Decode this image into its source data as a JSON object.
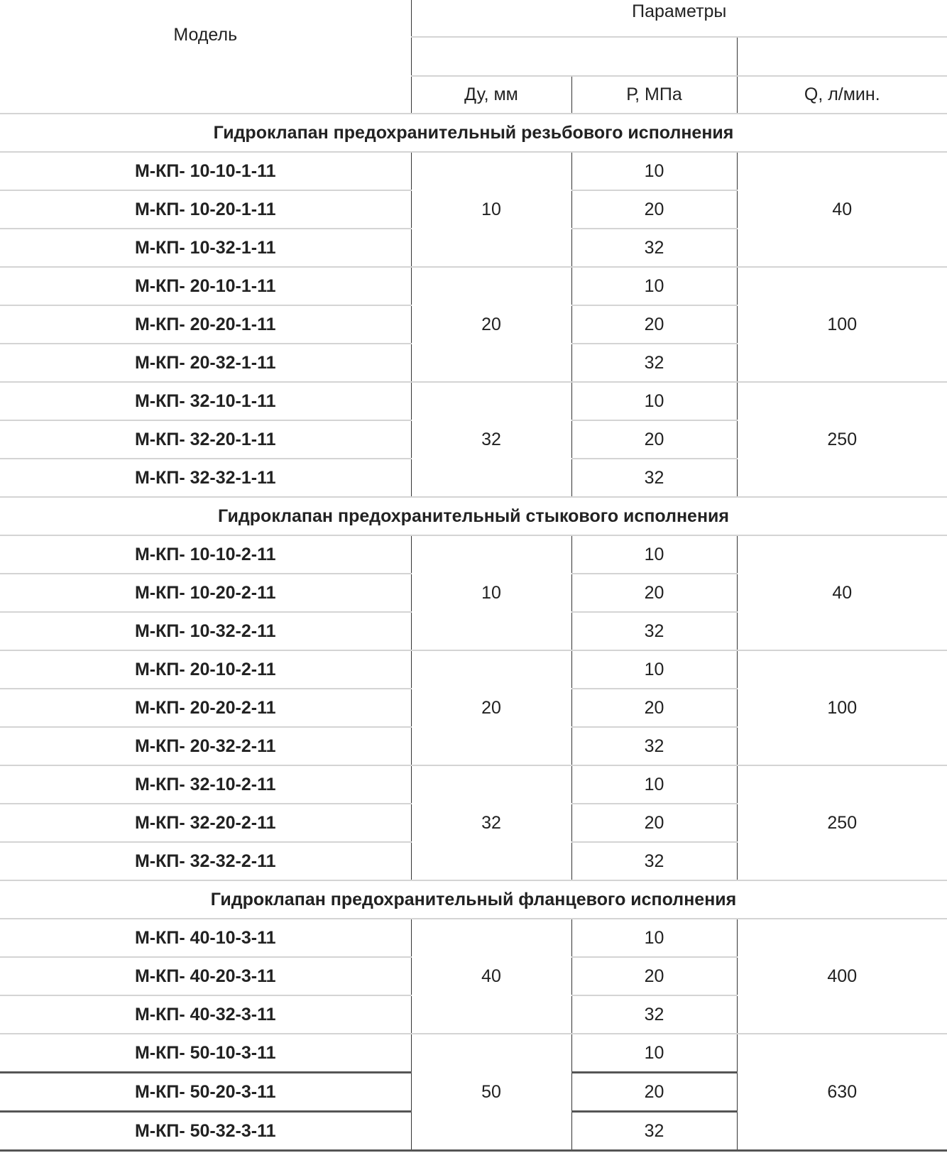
{
  "header": {
    "model": "Модель",
    "params": "Параметры",
    "du": "Ду, мм",
    "p": "Р, МПа",
    "q": "Q, л/мин."
  },
  "sections": [
    {
      "title": "Гидроклапан предохранительный резьбового исполнения",
      "groups": [
        {
          "du": "10",
          "q": "40",
          "rows": [
            {
              "model": "М-КП- 10-10-1-11",
              "p": "10"
            },
            {
              "model": "М-КП- 10-20-1-11",
              "p": "20"
            },
            {
              "model": "М-КП- 10-32-1-11",
              "p": "32"
            }
          ]
        },
        {
          "du": "20",
          "q": "100",
          "rows": [
            {
              "model": "М-КП- 20-10-1-11",
              "p": "10"
            },
            {
              "model": "М-КП- 20-20-1-11",
              "p": "20"
            },
            {
              "model": "М-КП- 20-32-1-11",
              "p": "32"
            }
          ]
        },
        {
          "du": "32",
          "q": "250",
          "rows": [
            {
              "model": "М-КП- 32-10-1-11",
              "p": "10"
            },
            {
              "model": "М-КП- 32-20-1-11",
              "p": "20"
            },
            {
              "model": "М-КП- 32-32-1-11",
              "p": "32"
            }
          ]
        }
      ]
    },
    {
      "title": "Гидроклапан предохранительный стыкового исполнения",
      "groups": [
        {
          "du": "10",
          "q": "40",
          "rows": [
            {
              "model": "М-КП- 10-10-2-11",
              "p": "10"
            },
            {
              "model": "М-КП- 10-20-2-11",
              "p": "20"
            },
            {
              "model": "М-КП- 10-32-2-11",
              "p": "32"
            }
          ]
        },
        {
          "du": "20",
          "q": "100",
          "rows": [
            {
              "model": "М-КП- 20-10-2-11",
              "p": "10"
            },
            {
              "model": "М-КП- 20-20-2-11",
              "p": "20"
            },
            {
              "model": "М-КП- 20-32-2-11",
              "p": "32"
            }
          ]
        },
        {
          "du": "32",
          "q": "250",
          "rows": [
            {
              "model": "М-КП- 32-10-2-11",
              "p": "10"
            },
            {
              "model": "М-КП- 32-20-2-11",
              "p": "20"
            },
            {
              "model": "М-КП- 32-32-2-11",
              "p": "32"
            }
          ]
        }
      ]
    },
    {
      "title": "Гидроклапан предохранительный фланцевого исполнения",
      "groups": [
        {
          "du": "40",
          "q": "400",
          "rows": [
            {
              "model": "М-КП- 40-10-3-11",
              "p": "10"
            },
            {
              "model": "М-КП- 40-20-3-11",
              "p": "20"
            },
            {
              "model": "М-КП- 40-32-3-11",
              "p": "32"
            }
          ]
        },
        {
          "du": "50",
          "q": "630",
          "rows": [
            {
              "model": "М-КП- 50-10-3-11",
              "p": "10"
            },
            {
              "model": "М-КП- 50-20-3-11",
              "p": "20"
            },
            {
              "model": "М-КП- 50-32-3-11",
              "p": "32"
            }
          ]
        }
      ]
    }
  ]
}
